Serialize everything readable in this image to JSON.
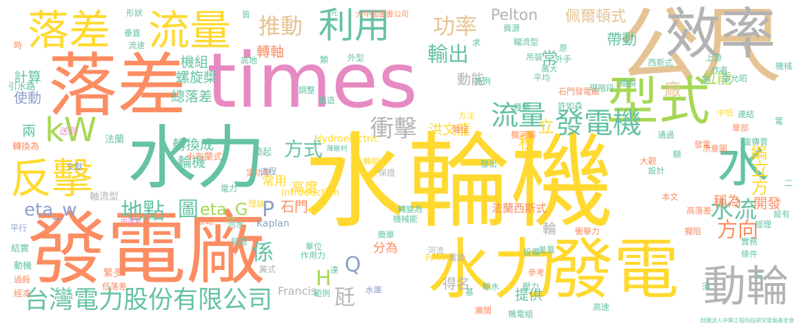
{
  "palette": {
    "yellow": "#ffd92f",
    "green": "#66c2a5",
    "orange": "#fc8d62",
    "pink": "#e78ac3",
    "lime": "#a6d854",
    "tan": "#e5c494",
    "blue": "#8da0cb",
    "grey": "#b3b3b3"
  },
  "words": [
    {
      "text": "水輪機",
      "color": "yellow",
      "weight": 1.0
    },
    {
      "text": "times",
      "color": "pink",
      "weight": 0.95
    },
    {
      "text": "水力",
      "color": "green",
      "weight": 0.9
    },
    {
      "text": "公尺",
      "color": "tan",
      "weight": 0.85
    },
    {
      "text": "發電廠",
      "color": "orange",
      "weight": 0.82
    },
    {
      "text": "落差",
      "color": "orange",
      "weight": 0.8
    },
    {
      "text": "發電",
      "color": "yellow",
      "weight": 0.75
    },
    {
      "text": "水力",
      "color": "yellow",
      "weight": 0.72
    },
    {
      "text": "效率",
      "color": "grey",
      "weight": 0.7
    },
    {
      "text": "型式",
      "color": "lime",
      "weight": 0.7
    },
    {
      "text": "落差",
      "color": "yellow",
      "weight": 0.6
    },
    {
      "text": "流量",
      "color": "yellow",
      "weight": 0.6
    },
    {
      "text": "水",
      "color": "green",
      "weight": 0.6
    },
    {
      "text": "反擊",
      "color": "yellow",
      "weight": 0.55
    },
    {
      "text": "動輪",
      "color": "grey",
      "weight": 0.5
    },
    {
      "text": "利用",
      "color": "green",
      "weight": 0.5
    },
    {
      "text": "kW",
      "color": "lime",
      "weight": 0.5
    },
    {
      "text": "發電機",
      "color": "green",
      "weight": 0.45
    },
    {
      "text": "台灣電力股份有限公司",
      "color": "green",
      "weight": 0.42
    },
    {
      "text": "衝擊",
      "color": "grey",
      "weight": 0.4
    },
    {
      "text": "流量",
      "color": "green",
      "weight": 0.4
    },
    {
      "text": "推動",
      "color": "tan",
      "weight": 0.38
    },
    {
      "text": "功率",
      "color": "tan",
      "weight": 0.36
    },
    {
      "text": "輸出",
      "color": "green",
      "weight": 0.35
    },
    {
      "text": "地點",
      "color": "green",
      "weight": 0.35
    },
    {
      "text": "方式",
      "color": "green",
      "weight": 0.34
    },
    {
      "text": "方向",
      "color": "orange",
      "weight": 0.33
    },
    {
      "text": "水流",
      "color": "green",
      "weight": 0.33
    },
    {
      "text": "eta_w",
      "color": "blue",
      "weight": 0.32
    },
    {
      "text": "eta_G",
      "color": "lime",
      "weight": 0.32
    },
    {
      "text": "P",
      "color": "blue",
      "weight": 0.32
    },
    {
      "text": "Q",
      "color": "blue",
      "weight": 0.3
    },
    {
      "text": "H",
      "color": "lime",
      "weight": 0.3
    },
    {
      "text": "係",
      "color": "green",
      "weight": 0.3
    },
    {
      "text": "瓩",
      "color": "grey",
      "weight": 0.3
    },
    {
      "text": "圖",
      "color": "green",
      "weight": 0.3
    },
    {
      "text": "立方",
      "color": "yellow",
      "weight": 0.3
    },
    {
      "text": "秒",
      "color": "yellow",
      "weight": 0.28
    },
    {
      "text": "立",
      "color": "yellow",
      "weight": 0.28
    },
    {
      "text": "常",
      "color": "green",
      "weight": 0.28
    },
    {
      "text": "廠",
      "color": "tan",
      "weight": 0.28
    },
    {
      "text": "編",
      "color": "yellow",
      "weight": 0.28
    },
    {
      "text": "佩爾頓式",
      "color": "tan",
      "weight": 0.26
    },
    {
      "text": "帶動",
      "color": "green",
      "weight": 0.26
    },
    {
      "text": "位能",
      "color": "lime",
      "weight": 0.26
    },
    {
      "text": "動能",
      "color": "grey",
      "weight": 0.25
    },
    {
      "text": "高度",
      "color": "yellow",
      "weight": 0.25
    },
    {
      "text": "石門",
      "color": "orange",
      "weight": 0.24
    },
    {
      "text": "稱為",
      "color": "orange",
      "weight": 0.24
    },
    {
      "text": "開發",
      "color": "orange",
      "weight": 0.24
    },
    {
      "text": "得名",
      "color": "grey",
      "weight": 0.24
    },
    {
      "text": "提供",
      "color": "green",
      "weight": 0.24
    },
    {
      "text": "輪",
      "color": "grey",
      "weight": 0.23
    },
    {
      "text": "分為",
      "color": "orange",
      "weight": 0.22
    },
    {
      "text": "洪文龍",
      "color": "yellow",
      "weight": 0.22
    },
    {
      "text": "輪機",
      "color": "green",
      "weight": 0.22
    },
    {
      "text": "轉換成",
      "color": "green",
      "weight": 0.22
    },
    {
      "text": "總落差",
      "color": "green",
      "weight": 0.22
    },
    {
      "text": "機組",
      "color": "green",
      "weight": 0.22
    },
    {
      "text": "轉軸",
      "color": "orange",
      "weight": 0.22
    },
    {
      "text": "使動",
      "color": "blue",
      "weight": 0.22
    },
    {
      "text": "計算",
      "color": "green",
      "weight": 0.22
    },
    {
      "text": "兩",
      "color": "green",
      "weight": 0.22
    },
    {
      "text": "常用",
      "color": "yellow",
      "weight": 0.2
    },
    {
      "text": "螺旋槳",
      "color": "green",
      "weight": 0.2
    },
    {
      "text": "Pelton",
      "color": "grey",
      "weight": 0.2
    },
    {
      "text": "Francis",
      "color": "grey",
      "weight": 0.18
    },
    {
      "text": "Hydroelectric",
      "color": "yellow",
      "weight": 0.16
    },
    {
      "text": "Introduction",
      "color": "yellow",
      "weight": 0.16
    },
    {
      "text": "Power",
      "color": "yellow",
      "weight": 0.15
    },
    {
      "text": "Kaplan",
      "color": "blue",
      "weight": 0.14
    },
    {
      "text": "法蘭西斯式",
      "color": "orange",
      "weight": 0.16
    },
    {
      "text": "卡布蘭式",
      "color": "orange",
      "weight": 0.14
    },
    {
      "text": "築起",
      "color": "green",
      "weight": 0.14
    },
    {
      "text": "定功率",
      "color": "orange",
      "weight": 0.14
    },
    {
      "text": "中落差",
      "color": "pink",
      "weight": 0.12
    },
    {
      "text": "軸流型",
      "color": "grey",
      "weight": 0.14
    },
    {
      "text": "法蘭",
      "color": "green",
      "weight": 0.14
    },
    {
      "text": "轉換為",
      "color": "orange",
      "weight": 0.14
    },
    {
      "text": "送到",
      "color": "pink",
      "weight": 0.14
    },
    {
      "text": "引水路",
      "color": "green",
      "weight": 0.14
    },
    {
      "text": "文獻",
      "color": "blue",
      "weight": 0.13
    },
    {
      "text": "平行",
      "color": "blue",
      "weight": 0.13
    },
    {
      "text": "結實",
      "color": "green",
      "weight": 0.13
    },
    {
      "text": "動機",
      "color": "green",
      "weight": 0.13
    },
    {
      "text": "過殺",
      "color": "orange",
      "weight": 0.12
    },
    {
      "text": "經濟",
      "color": "orange",
      "weight": 0.12
    },
    {
      "text": "繁多",
      "color": "orange",
      "weight": 0.12
    },
    {
      "text": "低落差",
      "color": "orange",
      "weight": 0.12
    },
    {
      "text": "河水",
      "color": "green",
      "weight": 0.12
    },
    {
      "text": "電力",
      "color": "green",
      "weight": 0.12
    },
    {
      "text": "流程",
      "color": "blue",
      "weight": 0.12
    },
    {
      "text": "理論",
      "color": "yellow",
      "weight": 0.12
    },
    {
      "text": "管路",
      "color": "orange",
      "weight": 0.12
    },
    {
      "text": "裝置",
      "color": "green",
      "weight": 0.12
    },
    {
      "text": "翼式",
      "color": "grey",
      "weight": 0.12
    },
    {
      "text": "單位",
      "color": "green",
      "weight": 0.12
    },
    {
      "text": "作用力",
      "color": "green",
      "weight": 0.12
    },
    {
      "text": "水庫",
      "color": "blue",
      "weight": 0.12
    },
    {
      "text": "簡單",
      "color": "green",
      "weight": 0.12
    },
    {
      "text": "轉變為",
      "color": "green",
      "weight": 0.12
    },
    {
      "text": "機械能",
      "color": "green",
      "weight": 0.12
    },
    {
      "text": "保證",
      "color": "grey",
      "weight": 0.12
    },
    {
      "text": "河流",
      "color": "grey",
      "weight": 0.12
    },
    {
      "text": "電能",
      "color": "grey",
      "weight": 0.12
    },
    {
      "text": "輪船",
      "color": "yellow",
      "weight": 0.12
    },
    {
      "text": "範例",
      "color": "green",
      "weight": 0.12
    },
    {
      "text": "輸水",
      "color": "green",
      "weight": 0.12
    },
    {
      "text": "廣闊",
      "color": "orange",
      "weight": 0.12
    },
    {
      "text": "設備",
      "color": "green",
      "weight": 0.12
    },
    {
      "text": "參考",
      "color": "orange",
      "weight": 0.12
    },
    {
      "text": "壓力",
      "color": "green",
      "weight": 0.12
    },
    {
      "text": "機電組",
      "color": "green",
      "weight": 0.12
    },
    {
      "text": "衝擊力",
      "color": "orange",
      "weight": 0.12
    },
    {
      "text": "差異",
      "color": "green",
      "weight": 0.12
    },
    {
      "text": "高速",
      "color": "green",
      "weight": 0.12
    },
    {
      "text": "擱阻",
      "color": "orange",
      "weight": 0.12
    },
    {
      "text": "設有",
      "color": "green",
      "weight": 0.12
    },
    {
      "text": "條件",
      "color": "green",
      "weight": 0.12
    },
    {
      "text": "經理",
      "color": "green",
      "weight": 0.12
    },
    {
      "text": "實務",
      "color": "green",
      "weight": 0.12
    },
    {
      "text": "本文",
      "color": "orange",
      "weight": 0.12
    },
    {
      "text": "設計",
      "color": "green",
      "weight": 0.12
    },
    {
      "text": "高落差",
      "color": "orange",
      "weight": 0.12
    },
    {
      "text": "大觀",
      "color": "orange",
      "weight": 0.12
    },
    {
      "text": "通過",
      "color": "green",
      "weight": 0.12
    },
    {
      "text": "發電",
      "color": "orange",
      "weight": 0.12
    },
    {
      "text": "示意圖",
      "color": "orange",
      "weight": 0.12
    },
    {
      "text": "盧傳曾",
      "color": "green",
      "weight": 0.12
    },
    {
      "text": "單部",
      "color": "orange",
      "weight": 0.12
    },
    {
      "text": "連結",
      "color": "green",
      "weight": 0.12
    },
    {
      "text": "中低",
      "color": "yellow",
      "weight": 0.12
    },
    {
      "text": "擱河壩",
      "color": "orange",
      "weight": 0.12
    },
    {
      "text": "種類",
      "color": "green",
      "weight": 0.12
    },
    {
      "text": "許如森",
      "color": "green",
      "weight": 0.12
    },
    {
      "text": "石門發電廠",
      "color": "orange",
      "weight": 0.12
    },
    {
      "text": "萬大",
      "color": "green",
      "weight": 0.12
    },
    {
      "text": "現階段",
      "color": "green",
      "weight": 0.12
    },
    {
      "text": "平均",
      "color": "green",
      "weight": 0.12
    },
    {
      "text": "吊裝",
      "color": "green",
      "weight": 0.12
    },
    {
      "text": "外手",
      "color": "green",
      "weight": 0.12
    },
    {
      "text": "繪製",
      "color": "green",
      "weight": 0.12
    },
    {
      "text": "西斯式",
      "color": "green",
      "weight": 0.12
    },
    {
      "text": "上游",
      "color": "green",
      "weight": 0.12
    },
    {
      "text": "作者",
      "color": "green",
      "weight": 0.12
    },
    {
      "text": "張允昭",
      "color": "green",
      "weight": 0.12
    },
    {
      "text": "機械",
      "color": "green",
      "weight": 0.12
    },
    {
      "text": "資源",
      "color": "green",
      "weight": 0.12
    },
    {
      "text": "輻流型",
      "color": "green",
      "weight": 0.12
    },
    {
      "text": "原",
      "color": "green",
      "weight": 0.12
    },
    {
      "text": "大中國圖書公司",
      "color": "orange",
      "weight": 0.1
    },
    {
      "text": "為例",
      "color": "green",
      "weight": 0.12
    },
    {
      "text": "方法",
      "color": "yellow",
      "weight": 0.12
    },
    {
      "text": "最佳",
      "color": "orange",
      "weight": 0.12
    },
    {
      "text": "發出",
      "color": "green",
      "weight": 0.12
    },
    {
      "text": "構造",
      "color": "green",
      "weight": 0.12
    },
    {
      "text": "調整",
      "color": "green",
      "weight": 0.12
    },
    {
      "text": "外型",
      "color": "green",
      "weight": 0.12
    },
    {
      "text": "類",
      "color": "green",
      "weight": 0.12
    },
    {
      "text": "求",
      "color": "green",
      "weight": 0.12
    },
    {
      "text": "高地",
      "color": "green",
      "weight": 0.12
    },
    {
      "text": "形狀",
      "color": "green",
      "weight": 0.12
    },
    {
      "text": "垂直",
      "color": "green",
      "weight": 0.12
    },
    {
      "text": "流速",
      "color": "green",
      "weight": 0.12
    },
    {
      "text": "時",
      "color": "orange",
      "weight": 0.12
    },
    {
      "text": "皆",
      "color": "green",
      "weight": 0.12
    },
    {
      "text": "元",
      "color": "green",
      "weight": 0.1
    },
    {
      "text": "陳敏村",
      "color": "green",
      "weight": 0.1
    },
    {
      "text": "財團法人中興工程科技研究發展基金會",
      "color": "green",
      "weight": 0.08
    },
    {
      "text": "二",
      "color": "green",
      "weight": 0.12
    },
    {
      "text": "三",
      "color": "green",
      "weight": 0.12
    },
    {
      "text": "須",
      "color": "green",
      "weight": 0.12
    },
    {
      "text": "座",
      "color": "green",
      "weight": 0.12
    },
    {
      "text": "達",
      "color": "green",
      "weight": 0.12
    },
    {
      "text": "基",
      "color": "green",
      "weight": 0.12
    },
    {
      "text": "額",
      "color": "green",
      "weight": 0.12
    },
    {
      "text": "電",
      "color": "green",
      "weight": 0.12
    }
  ]
}
